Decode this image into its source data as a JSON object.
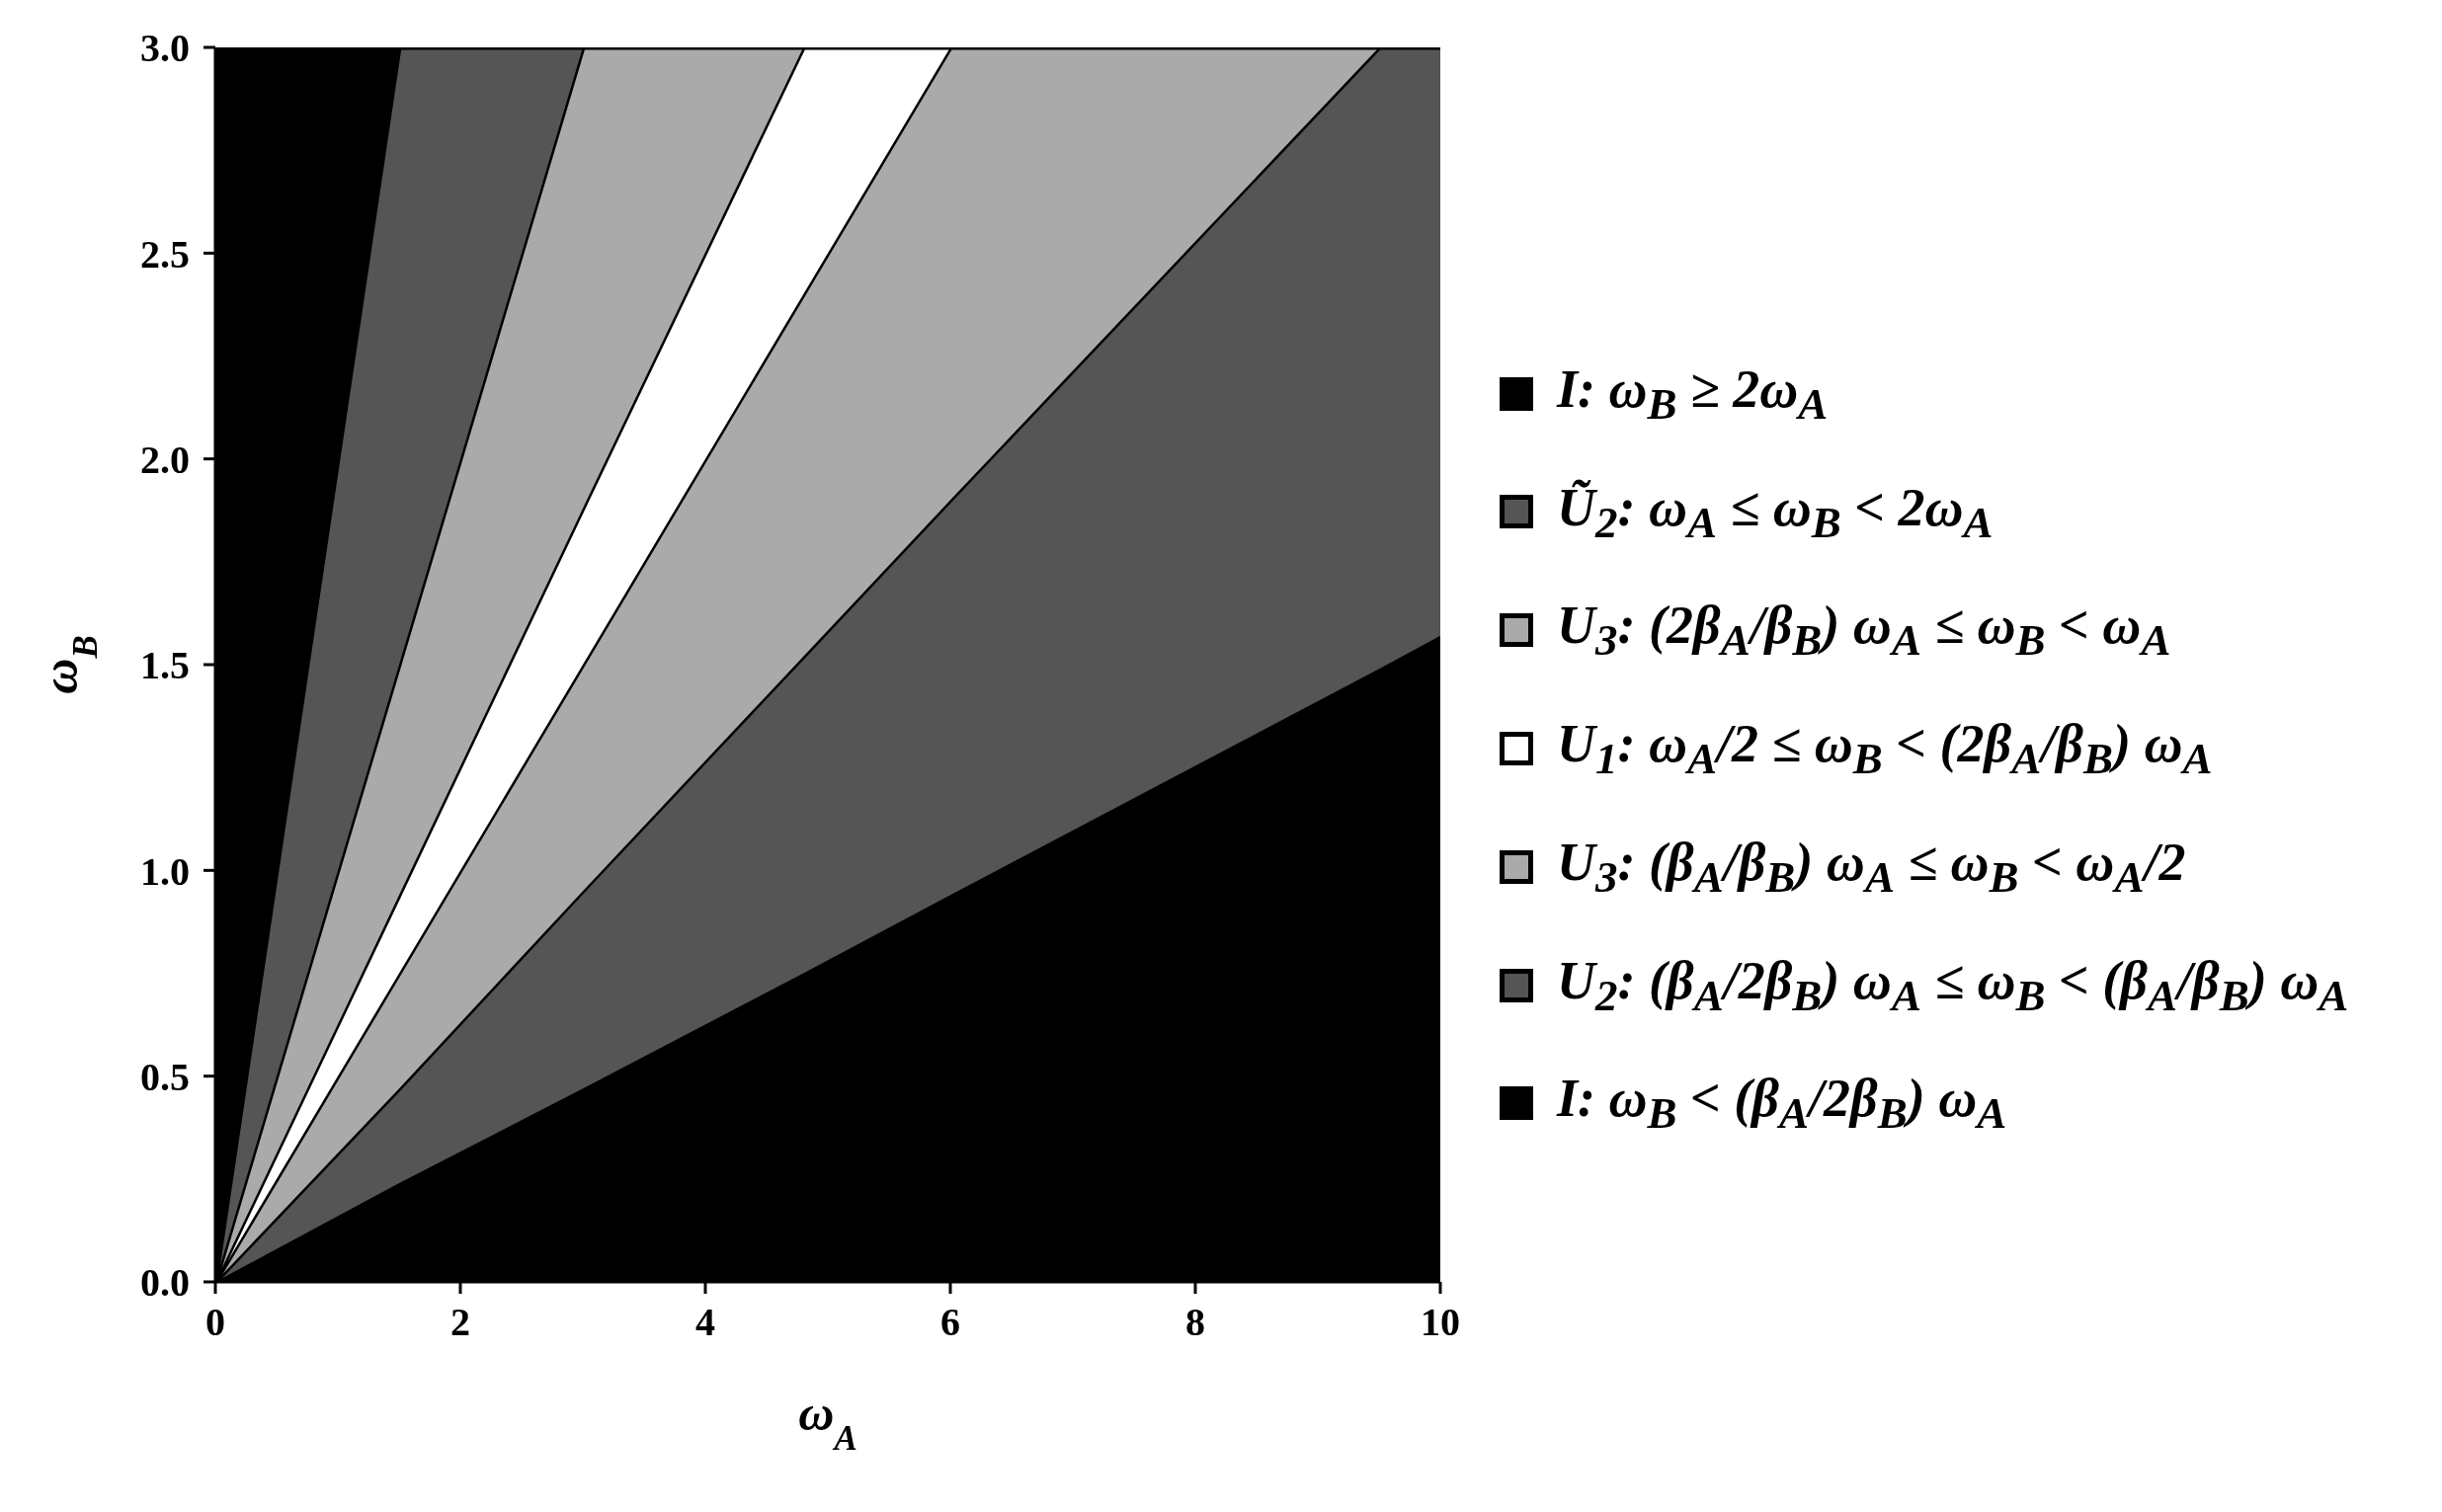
{
  "chart_data": {
    "type": "area",
    "stacked": true,
    "xlabel": "ω$_{A}$",
    "ylabel": "ω$_{B}$",
    "x": [
      0,
      1.5,
      3,
      4.8,
      6,
      9.5,
      10
    ],
    "series": [
      {
        "name": "I: ω$_{B}$ < (β$_{A}$/2β$_{B}$) ω$_{A}$",
        "color": "#000000",
        "values": [
          0,
          0.24,
          0.47,
          0.75,
          0.94,
          1.49,
          1.57
        ]
      },
      {
        "name": "U$_{2}$: (β$_{A}$/2β$_{B}$) ω$_{A}$ ≤ ω$_{B}$ < (β$_{A}$/β$_{B}$) ω$_{A}$",
        "color": "#555555",
        "values": [
          0,
          0.23,
          0.48,
          0.77,
          0.96,
          1.51,
          1.43
        ]
      },
      {
        "name": "U$_{3}$: (β$_{A}$/β$_{B}$) ω$_{A}$ ≤ ω$_{B}$ < ω$_{A}$/2",
        "color": "#aaaaaa",
        "values": [
          0,
          0.28,
          0.55,
          0.88,
          1.1,
          0,
          null
        ]
      },
      {
        "name": "U$_{1}$: ω$_{A}$/2 ≤ ω$_{B}$ < (2β$_{A}$/β$_{B}$) ω$_{A}$",
        "color": "#ffffff",
        "values": [
          0,
          0.19,
          0.38,
          0.6,
          0,
          null,
          null
        ]
      },
      {
        "name": "U$_{3}$: (2β$_{A}$/β$_{B}$) ω$_{A}$ ≤ ω$_{B}$ < ω$_{A}$",
        "color": "#aaaaaa",
        "values": [
          0,
          0.56,
          1.12,
          0,
          null,
          null,
          null
        ]
      },
      {
        "name": "Ũ$_{2}$: ω$_{A}$ ≤ ω$_{B}$ < 2ω$_{A}$",
        "color": "#555555",
        "values": [
          0,
          1.5,
          0,
          null,
          null,
          null,
          null
        ]
      },
      {
        "name": "I: ω$_{B}$ ≥ 2ω$_{A}$",
        "color": "#000000",
        "values": [
          3,
          0,
          null,
          null,
          null,
          null,
          null
        ]
      }
    ],
    "xlim": [
      0,
      10
    ],
    "xticks": [
      0,
      2,
      4,
      6,
      8,
      10
    ],
    "ylim": [
      0,
      3
    ],
    "yticks": [
      {
        "value": 0,
        "label": "0.0"
      },
      0.5,
      {
        "value": 1,
        "label": "1.0"
      },
      1.5,
      {
        "value": 2,
        "label": "2.0"
      },
      2.5,
      {
        "value": 3,
        "label": "3.0"
      }
    ],
    "legend": "right"
  }
}
